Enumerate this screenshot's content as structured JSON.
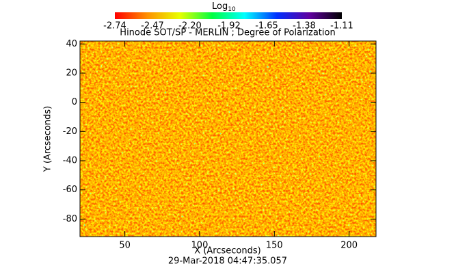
{
  "chart_data": {
    "type": "image",
    "title": "Hinode SOT/SP - MERLIN ; Degree of Polarization",
    "colorbar": {
      "label": "Log",
      "label_subscript": "10",
      "clim": [
        -2.74,
        -1.11
      ],
      "ticks": [
        -2.74,
        -2.47,
        {
          "value": -2.2,
          "label": "-2.20"
        },
        -1.92,
        -1.65,
        -1.38,
        -1.11
      ],
      "colormap": [
        "#ff0000",
        "#ff9000",
        "#e8ff00",
        "#00ff40",
        "#00ffff",
        "#0030ff",
        "#6000a0",
        "#000000"
      ]
    },
    "xlabel": "X (Arcseconds)",
    "ylabel": "Y (Arcseconds)",
    "xlim": [
      20,
      218
    ],
    "ylim": [
      -92,
      42
    ],
    "xticks": [
      50,
      100,
      150,
      200
    ],
    "yticks": [
      -80,
      -60,
      -40,
      -20,
      0,
      20,
      40
    ],
    "footer": "29-Mar-2018 04:47:35.057"
  }
}
